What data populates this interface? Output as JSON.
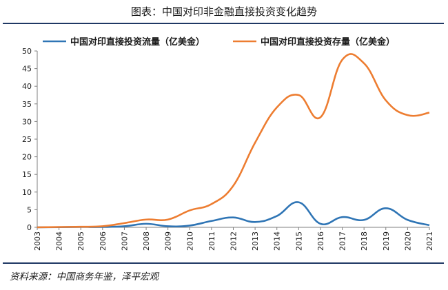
{
  "title": "图表：中国对印非金融直接投资变化趋势",
  "source": "资料来源：中国商务年鉴，泽平宏观",
  "colors": {
    "flow": "#2f75b5",
    "stock": "#ed7d31",
    "axis": "#7f7f7f",
    "rule": "#1f3864"
  },
  "chart_data": {
    "type": "line",
    "x": [
      "2003",
      "2004",
      "2005",
      "2006",
      "2007",
      "2008",
      "2009",
      "2010",
      "2011",
      "2012",
      "2013",
      "2014",
      "2015",
      "2016",
      "2017",
      "2018",
      "2019",
      "2020",
      "2021"
    ],
    "series": [
      {
        "name": "中国对印直接投资流量（亿美金）",
        "values": [
          0.0,
          0.05,
          0.1,
          0.1,
          0.3,
          1.0,
          0.3,
          0.5,
          1.8,
          2.8,
          1.5,
          3.2,
          7.1,
          1.0,
          2.9,
          2.1,
          5.4,
          2.1,
          0.6
        ]
      },
      {
        "name": "中国对印直接投资存量（亿美金）",
        "values": [
          0.0,
          0.1,
          0.15,
          0.3,
          1.2,
          2.2,
          2.2,
          4.8,
          6.6,
          11.8,
          24.0,
          34.0,
          37.5,
          31.2,
          47.5,
          46.5,
          36.0,
          31.8,
          32.5
        ]
      }
    ],
    "ylim": [
      0,
      50
    ],
    "yticks": [
      "0",
      "5",
      "10",
      "15",
      "20",
      "25",
      "30",
      "35",
      "40",
      "45",
      "50"
    ],
    "legend": "top",
    "grid": false
  }
}
